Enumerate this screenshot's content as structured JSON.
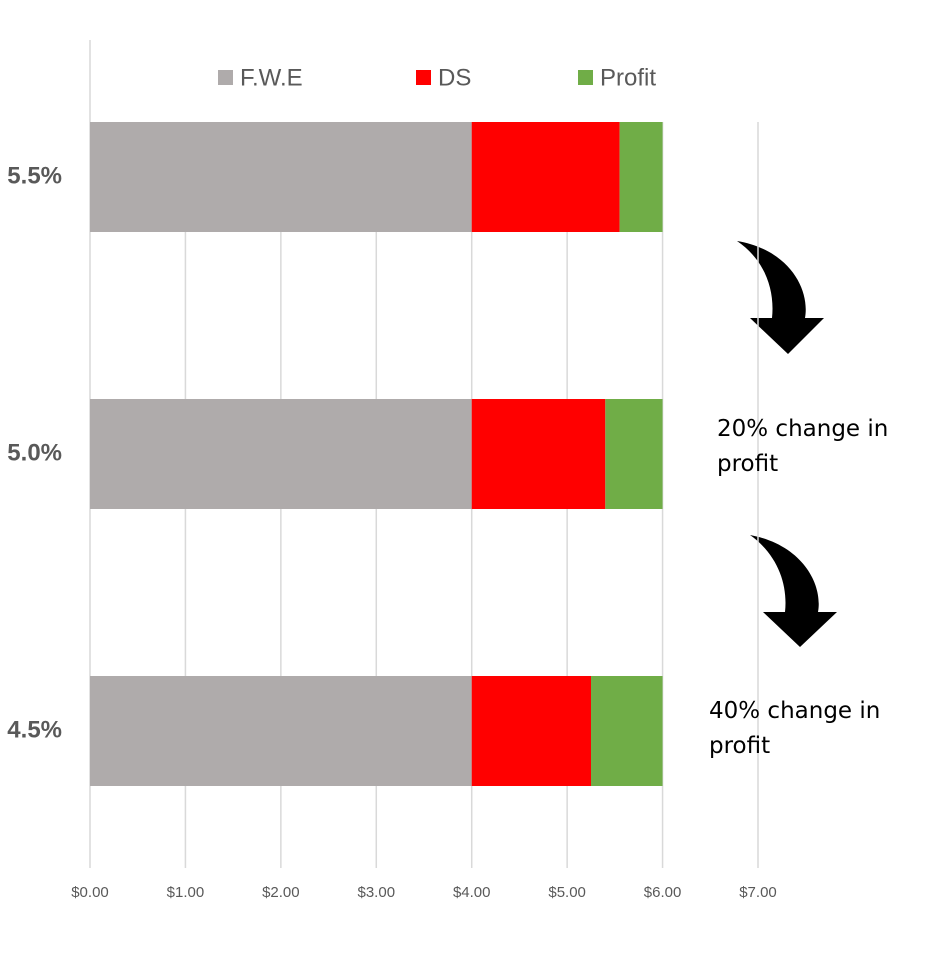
{
  "chart_data": {
    "type": "stacked-barh",
    "categories": [
      "5.5%",
      "5.0%",
      "4.5%"
    ],
    "series": [
      {
        "name": "F.W.E",
        "color": "#afabab",
        "values": [
          4.0,
          4.0,
          4.0
        ]
      },
      {
        "name": "DS",
        "color": "#ff0000",
        "values": [
          1.55,
          1.4,
          1.25
        ]
      },
      {
        "name": "Profit",
        "color": "#70ad47",
        "values": [
          0.45,
          0.6,
          0.75
        ]
      }
    ],
    "xlim": [
      0,
      7
    ],
    "xticks": [
      {
        "value": 0,
        "label": "$0.00"
      },
      {
        "value": 1,
        "label": "$1.00"
      },
      {
        "value": 2,
        "label": "$2.00"
      },
      {
        "value": 3,
        "label": "$3.00"
      },
      {
        "value": 4,
        "label": "$4.00"
      },
      {
        "value": 5,
        "label": "$5.00"
      },
      {
        "value": 6,
        "label": "$6.00"
      },
      {
        "value": 7,
        "label": "$7.00"
      }
    ],
    "grid": true,
    "legend": "top",
    "annotations": [
      "20% change in profit",
      "40% change in profit"
    ]
  }
}
